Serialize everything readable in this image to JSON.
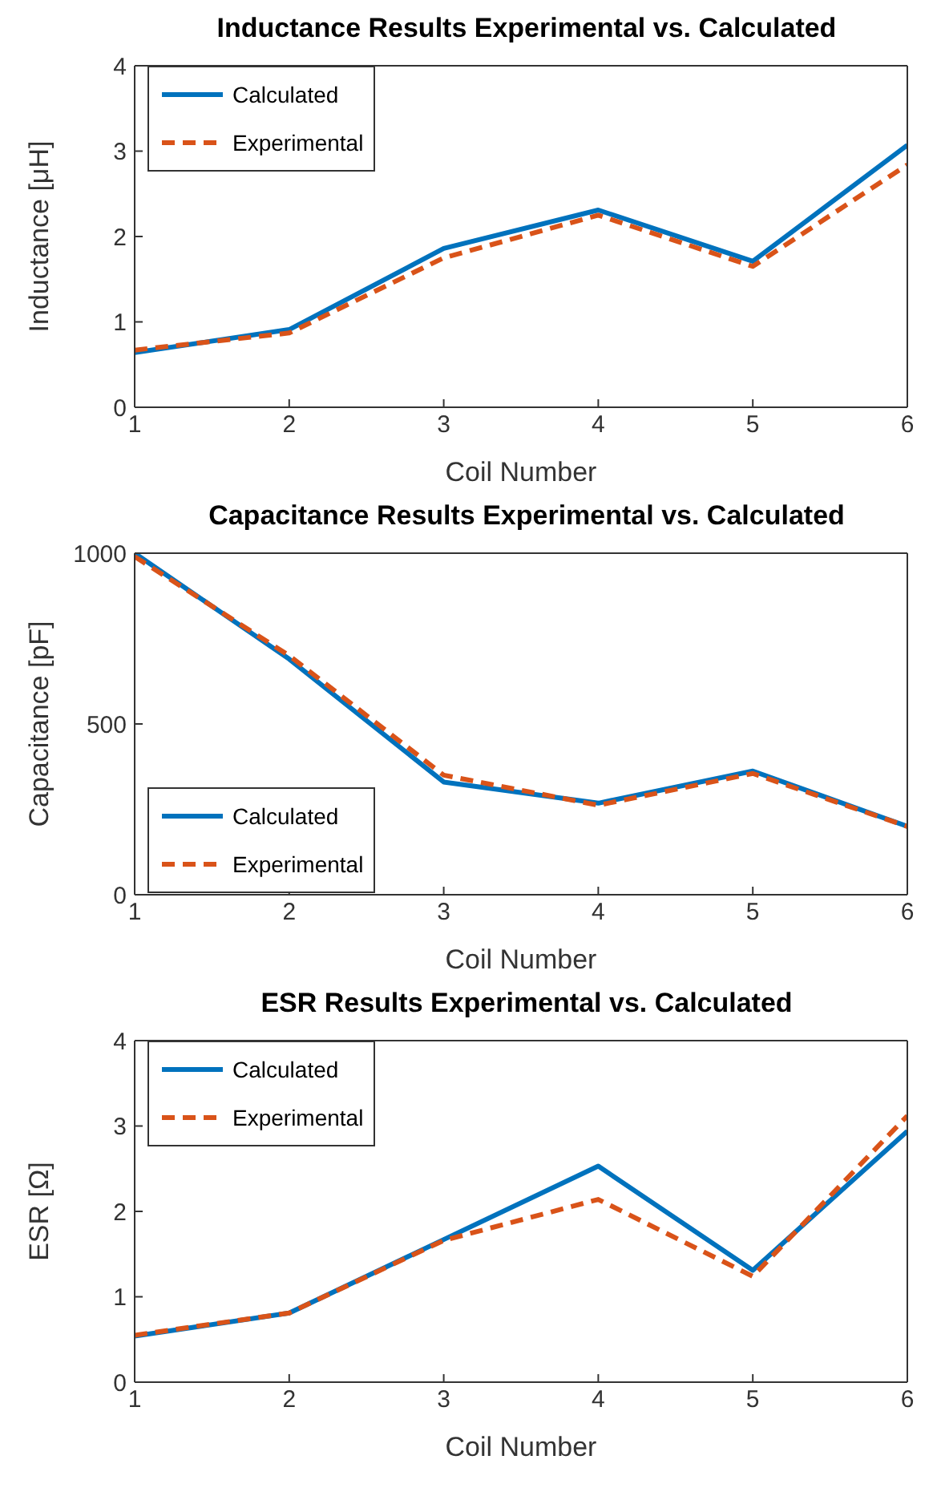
{
  "chart_data": [
    {
      "type": "line",
      "title": "Inductance Results Experimental vs. Calculated",
      "xlabel": "Coil Number",
      "ylabel": "Inductance [μH]",
      "x": [
        1,
        2,
        3,
        4,
        5,
        6
      ],
      "xlim": [
        1,
        6
      ],
      "xticks": [
        1,
        2,
        3,
        4,
        5,
        6
      ],
      "ylim": [
        0,
        4
      ],
      "yticks": [
        0,
        1,
        2,
        3,
        4
      ],
      "grid": false,
      "legend": "top left",
      "marker": "none",
      "series": [
        {
          "name": "Calculated",
          "color": "#0072bd",
          "line_style": "solid",
          "values": [
            0.64,
            0.91,
            1.86,
            2.31,
            1.71,
            3.07
          ]
        },
        {
          "name": "Experimental",
          "color": "#d95319",
          "line_style": "dashed",
          "values": [
            0.67,
            0.87,
            1.75,
            2.25,
            1.65,
            2.84
          ]
        }
      ]
    },
    {
      "type": "line",
      "title": "Capacitance Results Experimental vs. Calculated",
      "xlabel": "Coil Number",
      "ylabel": "Capacitance [pF]",
      "x": [
        1,
        2,
        3,
        4,
        5,
        6
      ],
      "xlim": [
        1,
        6
      ],
      "xticks": [
        1,
        2,
        3,
        4,
        5,
        6
      ],
      "ylim": [
        0,
        1000
      ],
      "yticks": [
        0,
        500,
        1000
      ],
      "grid": false,
      "legend": "bottom left",
      "marker": "none",
      "series": [
        {
          "name": "Calculated",
          "color": "#0072bd",
          "line_style": "solid",
          "values": [
            1000,
            690,
            330,
            268,
            362,
            200
          ]
        },
        {
          "name": "Experimental",
          "color": "#d95319",
          "line_style": "dashed",
          "values": [
            990,
            700,
            350,
            262,
            355,
            200
          ]
        }
      ]
    },
    {
      "type": "line",
      "title": "ESR Results Experimental vs. Calculated",
      "xlabel": "Coil Number",
      "ylabel": "ESR [Ω]",
      "x": [
        1,
        2,
        3,
        4,
        5,
        6
      ],
      "xlim": [
        1,
        6
      ],
      "xticks": [
        1,
        2,
        3,
        4,
        5,
        6
      ],
      "ylim": [
        0,
        4
      ],
      "yticks": [
        0,
        1,
        2,
        3,
        4
      ],
      "grid": false,
      "legend": "top left",
      "marker": "none",
      "series": [
        {
          "name": "Calculated",
          "color": "#0072bd",
          "line_style": "solid",
          "values": [
            0.54,
            0.81,
            1.67,
            2.53,
            1.31,
            2.94
          ]
        },
        {
          "name": "Experimental",
          "color": "#d95319",
          "line_style": "dashed",
          "values": [
            0.55,
            0.81,
            1.66,
            2.14,
            1.24,
            3.12
          ]
        }
      ]
    }
  ]
}
